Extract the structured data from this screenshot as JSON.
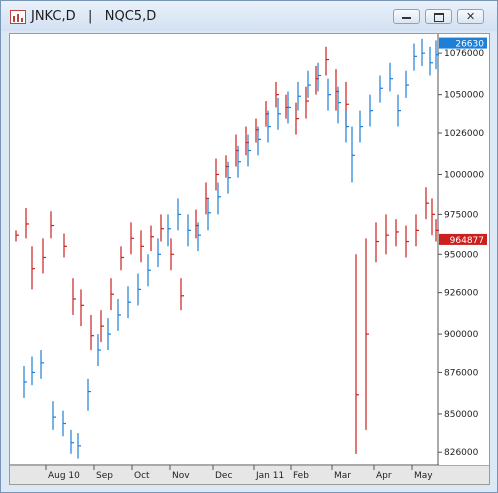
{
  "window": {
    "title": "JNKC,D   |   NQC5,D",
    "buttons": [
      "minimize",
      "restore",
      "close"
    ]
  },
  "colors": {
    "series1": "#cc1f1f",
    "series2": "#1f7fd6",
    "frame": "#7a96b6"
  },
  "chart_data": {
    "type": "bar",
    "grid": false,
    "right_axis": {
      "ticks": [
        "1076000",
        "1050000",
        "1026000",
        "1000000",
        "975000",
        "950000",
        "926000",
        "900000",
        "876000",
        "850000",
        "826000"
      ],
      "tick_values": [
        1076000,
        1050000,
        1026000,
        1000000,
        975000,
        950000,
        926000,
        900000,
        876000,
        850000,
        826000
      ],
      "ylim": [
        818000,
        1088000
      ],
      "labels": [
        {
          "text": "26630",
          "series": "NQC5,D"
        },
        {
          "text": "964877",
          "series": "JNKC,D"
        }
      ]
    },
    "x_axis": {
      "labels": [
        "Aug 10",
        "Sep",
        "Oct",
        "Nov",
        "Dec",
        "Jan 11",
        "Feb",
        "Mar",
        "Apr",
        "May"
      ]
    },
    "series": [
      {
        "name": "JNKC,D",
        "color": "#cc1f1f",
        "bars": [
          [
            0,
            965000,
            958000,
            962000
          ],
          [
            10,
            979000,
            960000,
            969000
          ],
          [
            16,
            955000,
            928000,
            941000
          ],
          [
            27,
            960000,
            938000,
            948000
          ],
          [
            35,
            977000,
            960000,
            968000
          ],
          [
            48,
            963000,
            948000,
            955000
          ],
          [
            57,
            935000,
            912000,
            922000
          ],
          [
            65,
            928000,
            905000,
            918000
          ],
          [
            75,
            912000,
            890000,
            899000
          ],
          [
            85,
            915000,
            895000,
            905000
          ],
          [
            95,
            935000,
            915000,
            925000
          ],
          [
            105,
            955000,
            940000,
            948000
          ],
          [
            115,
            970000,
            950000,
            960000
          ],
          [
            125,
            965000,
            945000,
            955000
          ],
          [
            135,
            968000,
            952000,
            961000
          ],
          [
            145,
            975000,
            958000,
            966000
          ],
          [
            155,
            960000,
            940000,
            950000
          ],
          [
            165,
            935000,
            915000,
            924000
          ],
          [
            180,
            978000,
            960000,
            968000
          ],
          [
            190,
            995000,
            975000,
            985000
          ],
          [
            200,
            1010000,
            990000,
            1000000
          ],
          [
            210,
            1012000,
            998000,
            1005000
          ],
          [
            220,
            1025000,
            1005000,
            1015000
          ],
          [
            230,
            1030000,
            1012000,
            1020000
          ],
          [
            240,
            1035000,
            1020000,
            1028000
          ],
          [
            250,
            1046000,
            1030000,
            1038000
          ],
          [
            260,
            1058000,
            1042000,
            1050000
          ],
          [
            270,
            1050000,
            1035000,
            1042000
          ],
          [
            280,
            1045000,
            1025000,
            1035000
          ],
          [
            290,
            1055000,
            1035000,
            1046000
          ],
          [
            300,
            1068000,
            1050000,
            1060000
          ],
          [
            310,
            1080000,
            1062000,
            1072000
          ],
          [
            320,
            1066000,
            1040000,
            1052000
          ],
          [
            330,
            1058000,
            1030000,
            1044000
          ],
          [
            340,
            950000,
            825000,
            862000
          ],
          [
            350,
            960000,
            840000,
            900000
          ],
          [
            360,
            970000,
            945000,
            958000
          ],
          [
            370,
            975000,
            950000,
            962000
          ],
          [
            380,
            972000,
            955000,
            964000
          ],
          [
            390,
            968000,
            948000,
            958000
          ],
          [
            400,
            975000,
            955000,
            965000
          ],
          [
            410,
            992000,
            972000,
            982000
          ],
          [
            416,
            985000,
            962000,
            975000
          ],
          [
            420,
            972000,
            958000,
            965000
          ]
        ]
      },
      {
        "name": "NQC5,D",
        "color": "#1f7fd6",
        "bars": [
          [
            8,
            880000,
            860000,
            870000
          ],
          [
            16,
            886000,
            868000,
            876000
          ],
          [
            25,
            890000,
            872000,
            882000
          ],
          [
            37,
            858000,
            840000,
            848000
          ],
          [
            47,
            852000,
            836000,
            844000
          ],
          [
            55,
            840000,
            825000,
            832000
          ],
          [
            62,
            838000,
            822000,
            830000
          ],
          [
            72,
            872000,
            852000,
            864000
          ],
          [
            82,
            900000,
            880000,
            890000
          ],
          [
            92,
            910000,
            890000,
            900000
          ],
          [
            102,
            922000,
            902000,
            912000
          ],
          [
            112,
            930000,
            910000,
            920000
          ],
          [
            122,
            938000,
            918000,
            928000
          ],
          [
            132,
            950000,
            930000,
            940000
          ],
          [
            142,
            960000,
            942000,
            950000
          ],
          [
            152,
            975000,
            955000,
            966000
          ],
          [
            162,
            985000,
            965000,
            975000
          ],
          [
            172,
            975000,
            955000,
            965000
          ],
          [
            182,
            970000,
            952000,
            962000
          ],
          [
            192,
            985000,
            965000,
            976000
          ],
          [
            202,
            995000,
            975000,
            986000
          ],
          [
            212,
            1008000,
            988000,
            998000
          ],
          [
            222,
            1018000,
            998000,
            1008000
          ],
          [
            232,
            1025000,
            1005000,
            1015000
          ],
          [
            242,
            1030000,
            1012000,
            1022000
          ],
          [
            252,
            1040000,
            1020000,
            1030000
          ],
          [
            262,
            1048000,
            1028000,
            1038000
          ],
          [
            272,
            1052000,
            1032000,
            1042000
          ],
          [
            282,
            1058000,
            1040000,
            1049000
          ],
          [
            292,
            1065000,
            1048000,
            1056000
          ],
          [
            302,
            1070000,
            1052000,
            1062000
          ],
          [
            312,
            1060000,
            1040000,
            1050000
          ],
          [
            322,
            1055000,
            1032000,
            1045000
          ],
          [
            330,
            1040000,
            1020000,
            1030000
          ],
          [
            336,
            1030000,
            995000,
            1012000
          ],
          [
            344,
            1040000,
            1020000,
            1030000
          ],
          [
            354,
            1050000,
            1030000,
            1040000
          ],
          [
            364,
            1062000,
            1045000,
            1054000
          ],
          [
            374,
            1070000,
            1052000,
            1060000
          ],
          [
            382,
            1050000,
            1030000,
            1040000
          ],
          [
            390,
            1065000,
            1048000,
            1056000
          ],
          [
            398,
            1082000,
            1065000,
            1074000
          ],
          [
            406,
            1085000,
            1068000,
            1076000
          ],
          [
            414,
            1080000,
            1062000,
            1070000
          ],
          [
            420,
            1084000,
            1066000,
            1075000
          ]
        ]
      }
    ]
  }
}
